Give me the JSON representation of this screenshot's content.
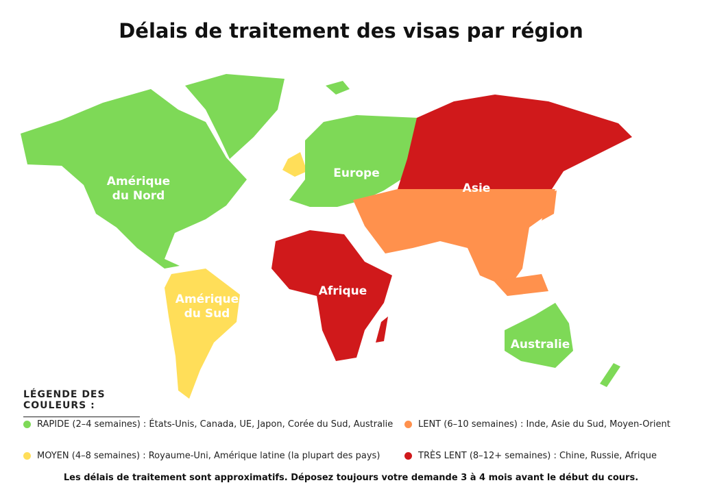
{
  "title": "Délais de traitement des visas par région",
  "regions": [
    {
      "lines": [
        "Amérique",
        "du Nord"
      ]
    },
    {
      "lines": [
        "Amérique",
        "du Sud"
      ]
    },
    {
      "lines": [
        "Europe"
      ]
    },
    {
      "lines": [
        "Asie"
      ]
    },
    {
      "lines": [
        "Afrique"
      ]
    },
    {
      "lines": [
        "Australie"
      ]
    }
  ],
  "legend": {
    "heading": "LÉGENDE DES COULEURS :",
    "items": [
      {
        "text": "RAPIDE (2–4 semaines) : États-Unis, Canada, UE, Japon, Corée du Sud, Australie",
        "color": "#7ed957"
      },
      {
        "text": "LENT (6–10 semaines) : Inde, Asie du Sud, Moyen-Orient",
        "color": "#ff914d"
      },
      {
        "text": "MOYEN (4–8 semaines) : Royaume-Uni, Amérique latine (la plupart des pays)",
        "color": "#ffde59"
      },
      {
        "text": "TRÈS LENT (8–12+ semaines) : Chine, Russie, Afrique",
        "color": "#d0191b"
      }
    ]
  },
  "note": "Les délais de traitement sont approximatifs. Déposez toujours votre demande 3 à 4 mois avant le début du cours."
}
